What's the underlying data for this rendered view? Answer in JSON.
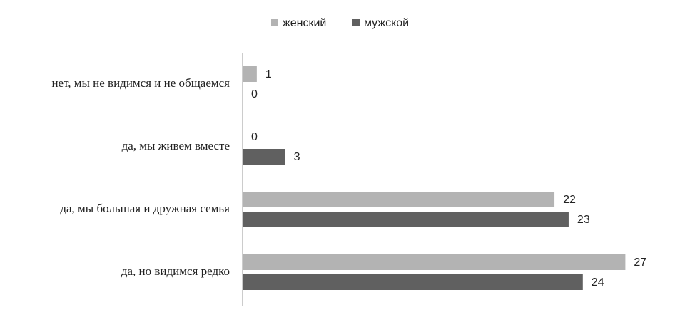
{
  "chart_data": {
    "type": "bar",
    "orientation": "horizontal",
    "categories": [
      "нет, мы не видимся и не общаемся",
      "да, мы живем вместе",
      "да, мы большая и дружная семья",
      "да, но видимся редко"
    ],
    "series": [
      {
        "name": "женский",
        "color": "#b3b3b3",
        "values": [
          1,
          0,
          22,
          27
        ]
      },
      {
        "name": "мужской",
        "color": "#606060",
        "values": [
          0,
          3,
          23,
          24
        ]
      }
    ],
    "xlim": [
      0,
      30
    ],
    "legend": "top",
    "grid": false
  }
}
